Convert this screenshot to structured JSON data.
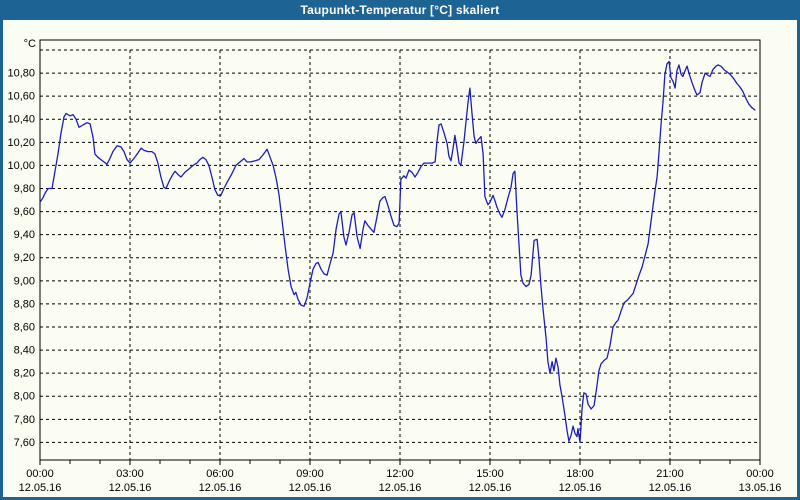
{
  "window": {
    "title": "Taupunkt-Temperatur [°C] skaliert"
  },
  "colors": {
    "titlebar": "#1d6394",
    "background": "#fcfdf2",
    "grid": "#000000",
    "axis": "#000000",
    "line": "#1c1cbe",
    "title_text": "#ffffff"
  },
  "chart_data": {
    "type": "line",
    "title": "Taupunkt-Temperatur [°C] skaliert",
    "grid": "dashed",
    "legend": "none",
    "y_axis": {
      "unit": "°C",
      "gridline_min": 7.6,
      "gridline_max": 11.0,
      "step": 0.2,
      "tick_labels": [
        "10,80",
        "10,60",
        "10,40",
        "10,20",
        "10,00",
        "9,80",
        "9,60",
        "9,40",
        "9,20",
        "9,00",
        "8,80",
        "8,60",
        "8,40",
        "8,20",
        "8,00",
        "7,80",
        "7,60"
      ],
      "tick_values": [
        10.8,
        10.6,
        10.4,
        10.2,
        10.0,
        9.8,
        9.6,
        9.4,
        9.2,
        9.0,
        8.8,
        8.6,
        8.4,
        8.2,
        8.0,
        7.8,
        7.6
      ]
    },
    "x_axis": {
      "hours_span": 24,
      "major_tick_every_hours": 3,
      "minor_tick_every_hours": 1,
      "ticks": [
        {
          "hour": 0,
          "time": "00:00",
          "date": "12.05.16"
        },
        {
          "hour": 3,
          "time": "03:00",
          "date": "12.05.16"
        },
        {
          "hour": 6,
          "time": "06:00",
          "date": "12.05.16"
        },
        {
          "hour": 9,
          "time": "09:00",
          "date": "12.05.16"
        },
        {
          "hour": 12,
          "time": "12:00",
          "date": "12.05.16"
        },
        {
          "hour": 15,
          "time": "15:00",
          "date": "12.05.16"
        },
        {
          "hour": 18,
          "time": "18:00",
          "date": "12.05.16"
        },
        {
          "hour": 21,
          "time": "21:00",
          "date": "12.05.16"
        },
        {
          "hour": 24,
          "time": "00:00",
          "date": "13.05.16"
        }
      ]
    },
    "series": [
      {
        "name": "Taupunkt-Temperatur skaliert",
        "color": "#1c1cbe",
        "points_hour_value": [
          [
            0,
            9.68
          ],
          [
            0.1,
            9.72
          ],
          [
            0.17,
            9.76
          ],
          [
            0.27,
            9.8
          ],
          [
            0.4,
            9.8
          ],
          [
            0.5,
            9.95
          ],
          [
            0.6,
            10.1
          ],
          [
            0.7,
            10.28
          ],
          [
            0.8,
            10.42
          ],
          [
            0.87,
            10.45
          ],
          [
            1.0,
            10.43
          ],
          [
            1.1,
            10.44
          ],
          [
            1.2,
            10.4
          ],
          [
            1.3,
            10.33
          ],
          [
            1.43,
            10.35
          ],
          [
            1.57,
            10.37
          ],
          [
            1.67,
            10.36
          ],
          [
            1.77,
            10.24
          ],
          [
            1.83,
            10.1
          ],
          [
            1.93,
            10.07
          ],
          [
            2.03,
            10.05
          ],
          [
            2.13,
            10.03
          ],
          [
            2.23,
            10.01
          ],
          [
            2.33,
            10.06
          ],
          [
            2.43,
            10.12
          ],
          [
            2.57,
            10.17
          ],
          [
            2.7,
            10.16
          ],
          [
            2.8,
            10.12
          ],
          [
            2.9,
            10.05
          ],
          [
            3.0,
            10.02
          ],
          [
            3.13,
            10.06
          ],
          [
            3.27,
            10.11
          ],
          [
            3.37,
            10.15
          ],
          [
            3.47,
            10.13
          ],
          [
            3.6,
            10.12
          ],
          [
            3.73,
            10.12
          ],
          [
            3.83,
            10.1
          ],
          [
            3.93,
            10.02
          ],
          [
            4.03,
            9.9
          ],
          [
            4.13,
            9.81
          ],
          [
            4.2,
            9.8
          ],
          [
            4.3,
            9.86
          ],
          [
            4.4,
            9.91
          ],
          [
            4.5,
            9.95
          ],
          [
            4.6,
            9.92
          ],
          [
            4.7,
            9.9
          ],
          [
            4.83,
            9.94
          ],
          [
            4.97,
            9.97
          ],
          [
            5.1,
            10.0
          ],
          [
            5.23,
            10.02
          ],
          [
            5.33,
            10.05
          ],
          [
            5.43,
            10.07
          ],
          [
            5.53,
            10.05
          ],
          [
            5.63,
            10.0
          ],
          [
            5.73,
            9.9
          ],
          [
            5.83,
            9.79
          ],
          [
            5.93,
            9.74
          ],
          [
            6.03,
            9.74
          ],
          [
            6.13,
            9.8
          ],
          [
            6.27,
            9.87
          ],
          [
            6.4,
            9.93
          ],
          [
            6.53,
            10.0
          ],
          [
            6.67,
            10.03
          ],
          [
            6.8,
            10.06
          ],
          [
            6.9,
            10.03
          ],
          [
            7.03,
            10.03
          ],
          [
            7.17,
            10.04
          ],
          [
            7.3,
            10.05
          ],
          [
            7.43,
            10.09
          ],
          [
            7.57,
            10.14
          ],
          [
            7.67,
            10.07
          ],
          [
            7.77,
            10.0
          ],
          [
            7.87,
            9.89
          ],
          [
            7.97,
            9.74
          ],
          [
            8.07,
            9.52
          ],
          [
            8.17,
            9.3
          ],
          [
            8.27,
            9.1
          ],
          [
            8.37,
            8.95
          ],
          [
            8.47,
            8.88
          ],
          [
            8.53,
            8.9
          ],
          [
            8.6,
            8.84
          ],
          [
            8.7,
            8.79
          ],
          [
            8.8,
            8.78
          ],
          [
            8.9,
            8.85
          ],
          [
            9.0,
            8.98
          ],
          [
            9.1,
            9.1
          ],
          [
            9.2,
            9.15
          ],
          [
            9.27,
            9.16
          ],
          [
            9.37,
            9.1
          ],
          [
            9.47,
            9.06
          ],
          [
            9.57,
            9.05
          ],
          [
            9.67,
            9.15
          ],
          [
            9.77,
            9.24
          ],
          [
            9.87,
            9.45
          ],
          [
            9.97,
            9.58
          ],
          [
            10.03,
            9.6
          ],
          [
            10.13,
            9.38
          ],
          [
            10.2,
            9.31
          ],
          [
            10.3,
            9.42
          ],
          [
            10.4,
            9.57
          ],
          [
            10.47,
            9.59
          ],
          [
            10.57,
            9.38
          ],
          [
            10.67,
            9.28
          ],
          [
            10.77,
            9.45
          ],
          [
            10.83,
            9.52
          ],
          [
            10.93,
            9.48
          ],
          [
            11.03,
            9.45
          ],
          [
            11.13,
            9.42
          ],
          [
            11.23,
            9.55
          ],
          [
            11.33,
            9.69
          ],
          [
            11.43,
            9.72
          ],
          [
            11.5,
            9.73
          ],
          [
            11.6,
            9.65
          ],
          [
            11.7,
            9.56
          ],
          [
            11.8,
            9.48
          ],
          [
            11.9,
            9.47
          ],
          [
            11.97,
            9.5
          ],
          [
            12.03,
            9.88
          ],
          [
            12.13,
            9.91
          ],
          [
            12.2,
            9.89
          ],
          [
            12.3,
            9.96
          ],
          [
            12.4,
            9.94
          ],
          [
            12.5,
            9.9
          ],
          [
            12.6,
            9.94
          ],
          [
            12.7,
            9.99
          ],
          [
            12.8,
            10.02
          ],
          [
            12.93,
            10.02
          ],
          [
            13.07,
            10.02
          ],
          [
            13.17,
            10.03
          ],
          [
            13.23,
            10.2
          ],
          [
            13.3,
            10.35
          ],
          [
            13.37,
            10.36
          ],
          [
            13.47,
            10.28
          ],
          [
            13.57,
            10.19
          ],
          [
            13.63,
            10.08
          ],
          [
            13.7,
            10.04
          ],
          [
            13.77,
            10.15
          ],
          [
            13.83,
            10.26
          ],
          [
            13.9,
            10.15
          ],
          [
            13.97,
            10.02
          ],
          [
            14.03,
            10.0
          ],
          [
            14.13,
            10.2
          ],
          [
            14.2,
            10.38
          ],
          [
            14.27,
            10.55
          ],
          [
            14.33,
            10.67
          ],
          [
            14.4,
            10.45
          ],
          [
            14.47,
            10.25
          ],
          [
            14.53,
            10.19
          ],
          [
            14.6,
            10.22
          ],
          [
            14.7,
            10.25
          ],
          [
            14.77,
            10.1
          ],
          [
            14.83,
            9.73
          ],
          [
            14.93,
            9.66
          ],
          [
            15.0,
            9.68
          ],
          [
            15.1,
            9.74
          ],
          [
            15.17,
            9.69
          ],
          [
            15.23,
            9.64
          ],
          [
            15.33,
            9.58
          ],
          [
            15.4,
            9.55
          ],
          [
            15.5,
            9.62
          ],
          [
            15.6,
            9.72
          ],
          [
            15.7,
            9.81
          ],
          [
            15.77,
            9.93
          ],
          [
            15.83,
            9.95
          ],
          [
            15.9,
            9.6
          ],
          [
            15.97,
            9.3
          ],
          [
            16.03,
            9.05
          ],
          [
            16.1,
            8.98
          ],
          [
            16.2,
            8.95
          ],
          [
            16.3,
            8.97
          ],
          [
            16.37,
            9.05
          ],
          [
            16.47,
            9.35
          ],
          [
            16.57,
            9.36
          ],
          [
            16.63,
            9.2
          ],
          [
            16.7,
            8.95
          ],
          [
            16.77,
            8.75
          ],
          [
            16.87,
            8.5
          ],
          [
            16.93,
            8.3
          ],
          [
            17.0,
            8.2
          ],
          [
            17.07,
            8.3
          ],
          [
            17.13,
            8.22
          ],
          [
            17.2,
            8.33
          ],
          [
            17.27,
            8.25
          ],
          [
            17.33,
            8.1
          ],
          [
            17.4,
            8.0
          ],
          [
            17.5,
            7.83
          ],
          [
            17.57,
            7.7
          ],
          [
            17.63,
            7.61
          ],
          [
            17.7,
            7.66
          ],
          [
            17.77,
            7.74
          ],
          [
            17.83,
            7.68
          ],
          [
            17.9,
            7.65
          ],
          [
            17.93,
            7.72
          ],
          [
            18.0,
            7.6
          ],
          [
            18.07,
            7.9
          ],
          [
            18.13,
            8.03
          ],
          [
            18.2,
            8.02
          ],
          [
            18.27,
            7.93
          ],
          [
            18.37,
            7.89
          ],
          [
            18.47,
            7.92
          ],
          [
            18.57,
            8.1
          ],
          [
            18.63,
            8.22
          ],
          [
            18.7,
            8.28
          ],
          [
            18.8,
            8.31
          ],
          [
            18.9,
            8.33
          ],
          [
            19.0,
            8.44
          ],
          [
            19.1,
            8.6
          ],
          [
            19.2,
            8.64
          ],
          [
            19.27,
            8.66
          ],
          [
            19.37,
            8.74
          ],
          [
            19.47,
            8.81
          ],
          [
            19.57,
            8.83
          ],
          [
            19.67,
            8.86
          ],
          [
            19.77,
            8.89
          ],
          [
            19.87,
            8.97
          ],
          [
            19.97,
            9.05
          ],
          [
            20.07,
            9.12
          ],
          [
            20.17,
            9.22
          ],
          [
            20.27,
            9.32
          ],
          [
            20.33,
            9.44
          ],
          [
            20.43,
            9.64
          ],
          [
            20.5,
            9.78
          ],
          [
            20.57,
            9.9
          ],
          [
            20.63,
            10.1
          ],
          [
            20.7,
            10.35
          ],
          [
            20.77,
            10.56
          ],
          [
            20.83,
            10.79
          ],
          [
            20.9,
            10.88
          ],
          [
            20.97,
            10.9
          ],
          [
            21.03,
            10.76
          ],
          [
            21.1,
            10.73
          ],
          [
            21.17,
            10.67
          ],
          [
            21.23,
            10.82
          ],
          [
            21.3,
            10.87
          ],
          [
            21.37,
            10.79
          ],
          [
            21.43,
            10.77
          ],
          [
            21.5,
            10.82
          ],
          [
            21.57,
            10.86
          ],
          [
            21.63,
            10.8
          ],
          [
            21.73,
            10.72
          ],
          [
            21.83,
            10.65
          ],
          [
            21.9,
            10.61
          ],
          [
            22.0,
            10.63
          ],
          [
            22.07,
            10.72
          ],
          [
            22.17,
            10.8
          ],
          [
            22.27,
            10.78
          ],
          [
            22.33,
            10.77
          ],
          [
            22.43,
            10.83
          ],
          [
            22.53,
            10.86
          ],
          [
            22.6,
            10.87
          ],
          [
            22.7,
            10.86
          ],
          [
            22.8,
            10.83
          ],
          [
            22.9,
            10.81
          ],
          [
            23.0,
            10.79
          ],
          [
            23.13,
            10.75
          ],
          [
            23.23,
            10.71
          ],
          [
            23.33,
            10.68
          ],
          [
            23.43,
            10.64
          ],
          [
            23.53,
            10.58
          ],
          [
            23.63,
            10.53
          ],
          [
            23.73,
            10.5
          ],
          [
            23.83,
            10.48
          ]
        ]
      }
    ]
  }
}
